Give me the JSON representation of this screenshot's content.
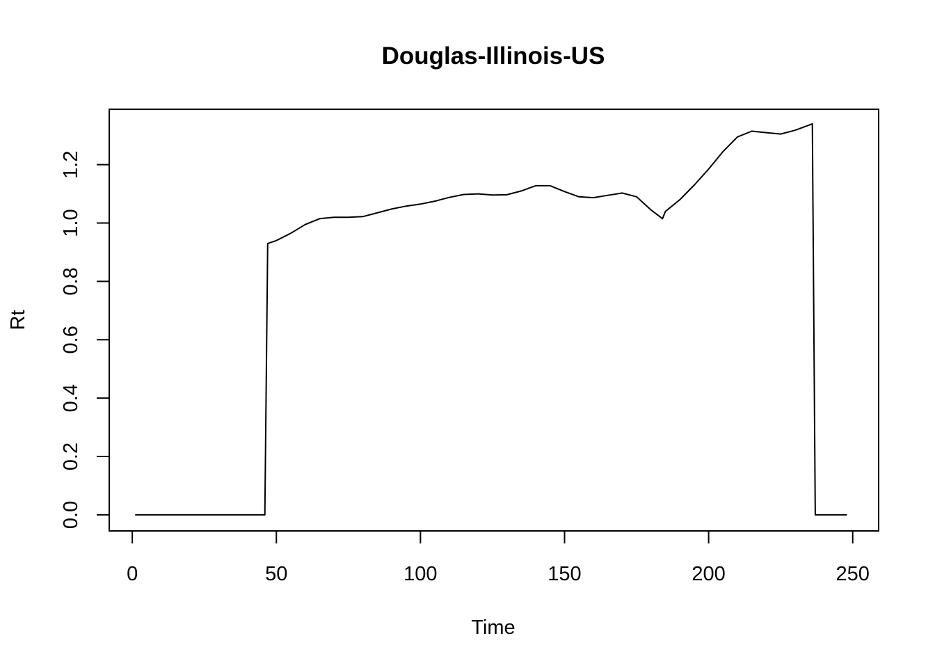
{
  "chart_data": {
    "type": "line",
    "title": "Douglas-Illinois-US",
    "xlabel": "Time",
    "ylabel": "Rt",
    "xlim": [
      -8,
      259
    ],
    "ylim": [
      -0.055,
      1.39
    ],
    "xticks": [
      0,
      50,
      100,
      150,
      200,
      250
    ],
    "xtick_labels": [
      "0",
      "50",
      "100",
      "150",
      "200",
      "250"
    ],
    "yticks": [
      0.0,
      0.2,
      0.4,
      0.6,
      0.8,
      1.0,
      1.2
    ],
    "ytick_labels": [
      "0.0",
      "0.2",
      "0.4",
      "0.6",
      "0.8",
      "1.0",
      "1.2"
    ],
    "grid": false,
    "series": [
      {
        "color": "#000000",
        "x": [
          1,
          10,
          20,
          30,
          40,
          46,
          47,
          50,
          55,
          60,
          65,
          70,
          75,
          80,
          85,
          90,
          95,
          100,
          105,
          110,
          115,
          120,
          125,
          130,
          135,
          140,
          145,
          150,
          155,
          160,
          165,
          170,
          175,
          180,
          184,
          185,
          190,
          195,
          200,
          205,
          210,
          215,
          220,
          225,
          230,
          236,
          237,
          240,
          245,
          248
        ],
        "y": [
          0.0,
          0.0,
          0.0,
          0.0,
          0.0,
          0.0,
          0.93,
          0.94,
          0.965,
          0.995,
          1.015,
          1.02,
          1.02,
          1.022,
          1.035,
          1.048,
          1.058,
          1.065,
          1.075,
          1.088,
          1.098,
          1.1,
          1.096,
          1.097,
          1.11,
          1.128,
          1.128,
          1.108,
          1.09,
          1.087,
          1.095,
          1.103,
          1.09,
          1.045,
          1.015,
          1.04,
          1.08,
          1.13,
          1.185,
          1.245,
          1.295,
          1.315,
          1.31,
          1.305,
          1.318,
          1.34,
          0.0,
          0.0,
          0.0,
          0.0
        ]
      }
    ]
  }
}
